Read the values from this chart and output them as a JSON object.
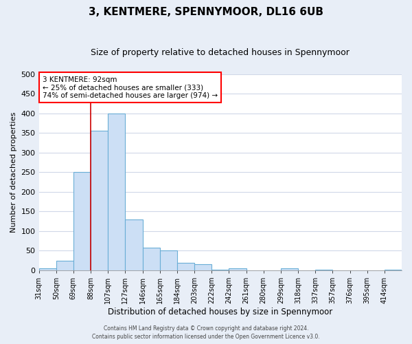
{
  "title": "3, KENTMERE, SPENNYMOOR, DL16 6UB",
  "subtitle": "Size of property relative to detached houses in Spennymoor",
  "xlabel": "Distribution of detached houses by size in Spennymoor",
  "ylabel": "Number of detached properties",
  "bar_heights": [
    5,
    25,
    250,
    355,
    400,
    130,
    58,
    50,
    20,
    15,
    2,
    5,
    0,
    0,
    5,
    0,
    2,
    0,
    0,
    0,
    2
  ],
  "tick_labels": [
    "31sqm",
    "50sqm",
    "69sqm",
    "88sqm",
    "107sqm",
    "127sqm",
    "146sqm",
    "165sqm",
    "184sqm",
    "203sqm",
    "222sqm",
    "242sqm",
    "261sqm",
    "280sqm",
    "299sqm",
    "318sqm",
    "337sqm",
    "357sqm",
    "376sqm",
    "395sqm",
    "414sqm"
  ],
  "bar_color": "#ccdff5",
  "bar_edge_color": "#6aaed6",
  "ylim": [
    0,
    500
  ],
  "yticks": [
    0,
    50,
    100,
    150,
    200,
    250,
    300,
    350,
    400,
    450,
    500
  ],
  "vline_index": 3,
  "vline_color": "#cc0000",
  "annotation_title": "3 KENTMERE: 92sqm",
  "annotation_line1": "← 25% of detached houses are smaller (333)",
  "annotation_line2": "74% of semi-detached houses are larger (974) →",
  "footer_line1": "Contains HM Land Registry data © Crown copyright and database right 2024.",
  "footer_line2": "Contains public sector information licensed under the Open Government Licence v3.0.",
  "plot_bg_color": "#ffffff",
  "fig_bg_color": "#e8eef7",
  "grid_color": "#d0d8e8",
  "title_fontsize": 11,
  "subtitle_fontsize": 9
}
